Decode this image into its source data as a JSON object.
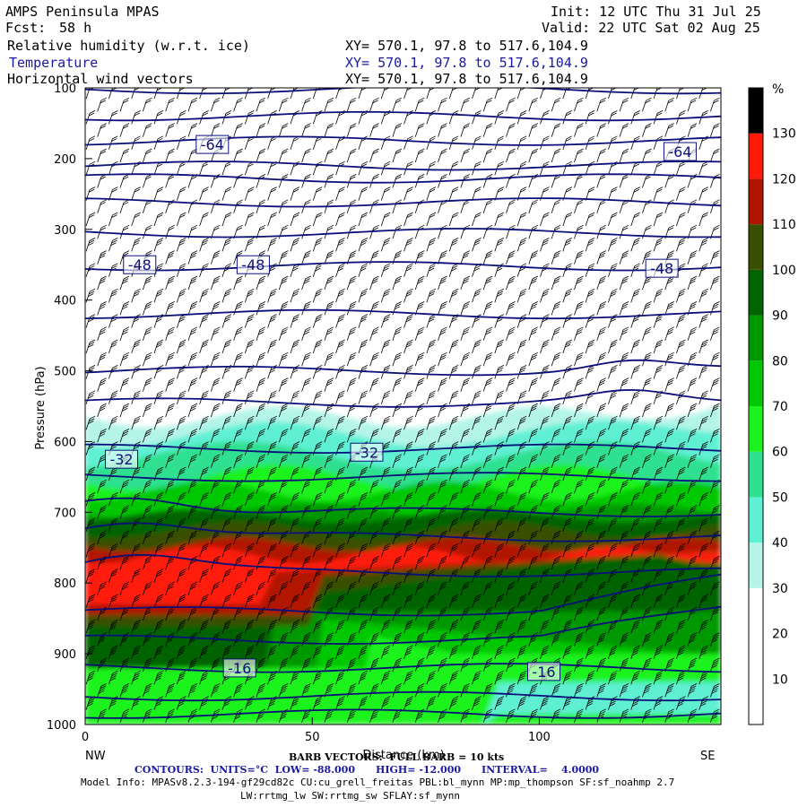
{
  "header": {
    "model": "AMPS Peninsula MPAS",
    "fcst_label": "Fcst:",
    "fcst_value": "58 h",
    "init": "Init: 12 UTC Thu 31 Jul 25",
    "valid": "Valid: 22 UTC Sat 02 Aug 25",
    "fields": [
      {
        "name": "Relative humidity (w.r.t. ice)",
        "xy": "XY= 570.1, 97.8 to 517.6,104.9"
      },
      {
        "name": "Temperature",
        "xy": "XY= 570.1, 97.8 to 517.6,104.9"
      },
      {
        "name": "Horizontal wind vectors",
        "xy": "XY= 570.1, 97.8 to 517.6,104.9"
      }
    ]
  },
  "footer": {
    "barb": "BARB VECTORS:  FULL BARB = 10 kts",
    "contours": "CONTOURS:  UNITS=°C  LOW= -88.000      HIGH= -12.000      INTERVAL=    4.0000",
    "model_info": "Model Info: MPASv8.2.3-194-gf29cd82c CU:cu_grell_freitas PBL:bl_mynn MP:mp_thompson SF:sf_noahmp 2.7",
    "model_info2": "LW:rrtmg_lw SW:rrtmg_sw SFLAY:sf_mynn"
  },
  "colors": {
    "contour": "#0a0f7a",
    "barb": "#000000",
    "scale": [
      "#ffffff",
      "#ffffff",
      "#ffffff",
      "#b4f5e8",
      "#5ef0d4",
      "#2fe090",
      "#1ef21e",
      "#00c800",
      "#009800",
      "#006400",
      "#3a4f00",
      "#b01500",
      "#ff1a0a"
    ]
  },
  "chart_data": {
    "type": "cross-section",
    "xlabel": "Distance (km)",
    "ylabel": "Pressure (hPa)",
    "x_range": [
      0,
      140
    ],
    "y_range": [
      1000,
      100
    ],
    "x_ticks": [
      0,
      50,
      100
    ],
    "y_ticks": [
      100,
      200,
      300,
      400,
      500,
      600,
      700,
      800,
      900,
      1000
    ],
    "x_end_labels": {
      "left": "NW",
      "right": "SE"
    },
    "colorbar": {
      "unit": "%",
      "levels": [
        0,
        10,
        20,
        30,
        40,
        50,
        60,
        70,
        80,
        90,
        100,
        110,
        120,
        130
      ],
      "labels": [
        10,
        20,
        30,
        40,
        50,
        60,
        70,
        80,
        90,
        100,
        110,
        120,
        130
      ]
    },
    "temperature_labels": [
      {
        "text": "-64",
        "x": 28,
        "p": 180
      },
      {
        "text": "-64",
        "x": 131,
        "p": 190
      },
      {
        "text": "-48",
        "x": 12,
        "p": 350
      },
      {
        "text": "-48",
        "x": 37,
        "p": 350
      },
      {
        "text": "-48",
        "x": 127,
        "p": 355
      },
      {
        "text": "-32",
        "x": 8,
        "p": 625
      },
      {
        "text": "-32",
        "x": 62,
        "p": 615
      },
      {
        "text": "-16",
        "x": 34,
        "p": 920
      },
      {
        "text": "-16",
        "x": 101,
        "p": 925
      }
    ]
  }
}
